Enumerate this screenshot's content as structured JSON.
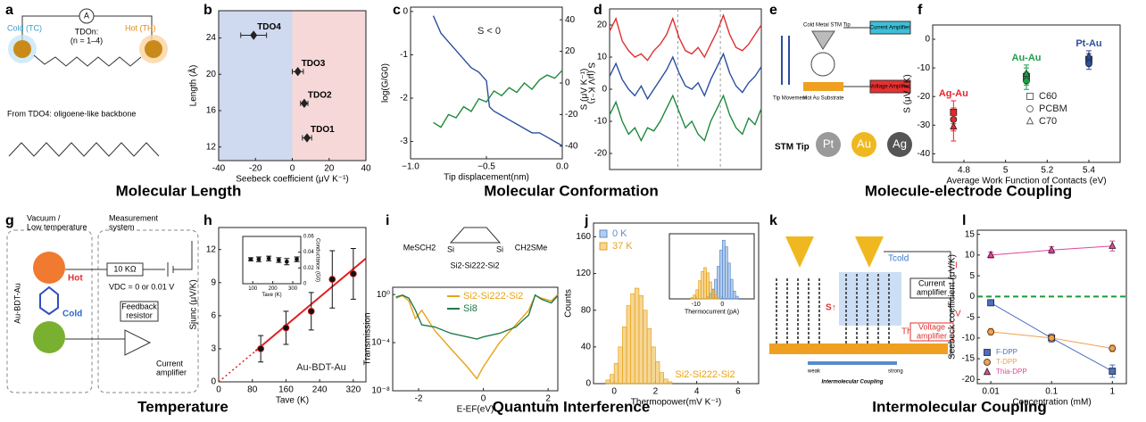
{
  "captions": [
    "Molecular Length",
    "Molecular Conformation",
    "Molecule-electrode Coupling",
    "Temperature",
    "Quantum Interference",
    "Intermolecular Coupling"
  ],
  "diagram_a": {
    "label": "a",
    "meter": "A",
    "cold": "Cold (TC)",
    "hot": "Hot (TH)",
    "molecule": "TDOn:",
    "n_range": "(n = 1–4)",
    "note": "From TDO4: oligoene-like backbone"
  },
  "diagram_e": {
    "label": "e",
    "tip": "Cold Metal STM Tip",
    "current_amp": "Current Amplifier",
    "movement": "Tip Movement",
    "substrate": "Hot Au Substrate",
    "voltage_amp": "Voltage Amplifier",
    "stm_tip": "STM Tip",
    "tips": [
      "Pt",
      "Au",
      "Ag"
    ]
  },
  "diagram_g": {
    "label": "g",
    "env": [
      "Vacuum /",
      "Low temperature"
    ],
    "system": [
      "Measurement",
      "system"
    ],
    "resistor": "10 KΩ",
    "voltage": "VDC = 0 or 0.01 V",
    "feedback": [
      "Feedback",
      "resistor"
    ],
    "amplifier": [
      "Current",
      "amplifier"
    ],
    "hot": "Hot",
    "cold": "Cold",
    "junction": "Au-BDT-Au"
  },
  "diagram_i": {
    "left": "MeSCH2",
    "si": [
      "Si",
      "Si"
    ],
    "right": "CH2SMe",
    "name": "Si2-Si222-Si2"
  },
  "diagram_k": {
    "label": "k",
    "t_cold": "Tcold",
    "t_hot": "Thot",
    "current": "I",
    "current_amp": [
      "Current",
      "amplifier"
    ],
    "voltage": "V",
    "voltage_amp": [
      "Voltage",
      "amplifier"
    ],
    "s": "S↑",
    "weak": "weak",
    "strong": "strong",
    "coupling": "Intermolecular Coupling"
  },
  "chart_data": [
    {
      "type": "scatter",
      "label": "b",
      "xlabel": "Seebeck coefficient (μV K⁻¹)",
      "ylabel": "Length (Å)",
      "xlim": [
        -40,
        40
      ],
      "xticks": [
        -40,
        -20,
        0,
        20,
        40
      ],
      "ylim": [
        10.5,
        27
      ],
      "yticks": [
        12,
        16,
        20,
        24
      ],
      "region_colors": [
        "#cfd9ef",
        "#f7d8d8"
      ],
      "series": [
        {
          "color": "#222",
          "marker": "diamond",
          "x": [
            8,
            6.5,
            3,
            -21
          ],
          "x_err": [
            2.5,
            2,
            3,
            7
          ],
          "values": [
            13,
            16.8,
            20.3,
            24.3
          ],
          "point_labels": [
            "TDO1",
            "TDO2",
            "TDO3",
            "TDO4"
          ]
        }
      ]
    },
    {
      "type": "line",
      "label": "c",
      "xlabel": "Tip displacement(nm)",
      "ylabel": "log(G/G0)",
      "y2label": "S (μV K⁻¹)",
      "xlim": [
        -1,
        0
      ],
      "xticks": [
        {
          "value": -1,
          "label": "−1.0"
        },
        {
          "value": -0.5,
          "label": "−0.5"
        },
        {
          "value": 0,
          "label": "0.0"
        }
      ],
      "ylim": [
        -3.4,
        0.1
      ],
      "yticks": [
        0,
        -1,
        -2,
        -3
      ],
      "y2lim": [
        -48,
        48
      ],
      "y2ticks": [
        -40,
        -20,
        0,
        20,
        40
      ],
      "annotations": [
        "S < 0"
      ],
      "series": [
        {
          "color": "#2a4f9e",
          "x": [
            -0.85,
            -0.8,
            -0.75,
            -0.7,
            -0.65,
            -0.6,
            -0.55,
            -0.5,
            -0.48,
            -0.45,
            -0.4,
            -0.35,
            -0.3,
            -0.25,
            -0.2,
            -0.15,
            -0.1,
            -0.05,
            0
          ],
          "values": [
            -0.1,
            -0.5,
            -0.7,
            -0.9,
            -1.1,
            -1.3,
            -1.4,
            -1.6,
            -2.2,
            -2.3,
            -2.4,
            -2.5,
            -2.6,
            -2.7,
            -2.8,
            -2.8,
            -2.9,
            -3.0,
            -3.1
          ]
        },
        {
          "color": "#1f8a3c",
          "axis": "y2",
          "x": [
            -0.85,
            -0.8,
            -0.75,
            -0.7,
            -0.65,
            -0.6,
            -0.55,
            -0.5,
            -0.45,
            -0.4,
            -0.35,
            -0.3,
            -0.25,
            -0.2,
            -0.15,
            -0.1,
            -0.05,
            0
          ],
          "values": [
            -25,
            -28,
            -20,
            -22,
            -15,
            -18,
            -10,
            -12,
            -5,
            -8,
            -3,
            -6,
            0,
            -4,
            2,
            5,
            3,
            8
          ]
        }
      ]
    },
    {
      "type": "line",
      "label": "d",
      "ylabel": "S (μV K⁻¹)",
      "ylim": [
        -25,
        25
      ],
      "yticks": [
        -20,
        -10,
        0,
        10,
        20
      ],
      "series": [
        {
          "color": "#e03030",
          "values": [
            18,
            22,
            15,
            12,
            10,
            11,
            9,
            12,
            14,
            17,
            22,
            16,
            12,
            11,
            13,
            10,
            14,
            18,
            23,
            17,
            13,
            12,
            14,
            17,
            20
          ]
        },
        {
          "color": "#2a4f9e",
          "values": [
            4,
            8,
            3,
            0,
            -2,
            1,
            -3,
            0,
            3,
            6,
            10,
            5,
            1,
            0,
            2,
            -2,
            3,
            7,
            11,
            5,
            1,
            -1,
            2,
            4,
            7
          ]
        },
        {
          "color": "#1f8a3c",
          "values": [
            -8,
            -4,
            -10,
            -14,
            -12,
            -16,
            -12,
            -13,
            -10,
            -6,
            -2,
            -7,
            -12,
            -10,
            -14,
            -16,
            -10,
            -6,
            -2,
            -8,
            -12,
            -14,
            -9,
            -11,
            -6
          ]
        }
      ]
    },
    {
      "type": "scatter",
      "label": "f",
      "xlabel": "Average Work Function of Contacts (eV)",
      "ylabel": "S (μV / K)",
      "xlim": [
        4.65,
        5.55
      ],
      "xticks": [
        4.8,
        5,
        5.2,
        5.4
      ],
      "ylim": [
        -43,
        5
      ],
      "yticks": [
        0,
        -10,
        -20,
        -30,
        -40
      ],
      "groups": [
        {
          "name": "Ag-Au",
          "color": "#e8262c"
        },
        {
          "name": "Au-Au",
          "color": "#1f9e4a"
        },
        {
          "name": "Pt-Au",
          "color": "#2c4fa0"
        }
      ],
      "series": [
        {
          "name": "C60",
          "marker": "square",
          "x": [
            4.75,
            5.1,
            5.4
          ],
          "values": [
            -25.5,
            -13,
            -7
          ],
          "errors": [
            4,
            3,
            2
          ]
        },
        {
          "name": "PCBM",
          "marker": "circle",
          "x": [
            4.75,
            5.1,
            5.4
          ],
          "values": [
            -28,
            -14.5,
            -8.5
          ],
          "errors": [
            4,
            3,
            2
          ]
        },
        {
          "name": "C70",
          "marker": "triangle",
          "x": [
            4.75,
            5.1,
            5.4
          ],
          "values": [
            -30.5,
            -12,
            -6
          ],
          "errors": [
            5,
            3,
            2
          ]
        }
      ]
    },
    {
      "type": "scatter",
      "label": "h",
      "xlabel": "Tave (K)",
      "ylabel": "Sjunc (μV/K)",
      "xlim": [
        0,
        350
      ],
      "xticks": [
        0,
        80,
        160,
        240,
        320
      ],
      "ylim": [
        0,
        14
      ],
      "yticks": [
        0,
        3,
        6,
        9,
        12
      ],
      "annotations": [
        "Au-BDT-Au"
      ],
      "fit": {
        "color": "#e02020",
        "slope": 0.032,
        "intercept": 0
      },
      "series": [
        {
          "color": "#111",
          "marker": "circle",
          "x": [
            100,
            160,
            220,
            270,
            320
          ],
          "values": [
            3,
            4.9,
            6.4,
            9.3,
            9.8
          ],
          "errors": [
            1.2,
            1.5,
            1.7,
            2.6,
            2.3
          ]
        }
      ]
    },
    {
      "type": "scatter",
      "xlabel": "Tave (K)",
      "y2label": "Conductance (G0)",
      "xlim": [
        50,
        340
      ],
      "xticks": [
        100,
        200,
        300
      ],
      "y2lim": [
        0,
        0.06
      ],
      "y2ticks": [
        0,
        0.02,
        0.04,
        0.06
      ],
      "series": [
        {
          "color": "#111",
          "marker": "circle",
          "axis": "y2",
          "x": [
            90,
            130,
            180,
            230,
            270,
            320
          ],
          "values": [
            0.031,
            0.031,
            0.032,
            0.03,
            0.028,
            0.031
          ],
          "errors": [
            0.002,
            0.003,
            0.003,
            0.003,
            0.004,
            0.003
          ]
        }
      ]
    },
    {
      "type": "line",
      "label": "i",
      "xlabel": "E-EF(eV)",
      "ylabel": "Transmission",
      "ylog": true,
      "xlim": [
        -2.8,
        2.3
      ],
      "xticks": [
        -2,
        0,
        2
      ],
      "ylim": [
        1e-08,
        4
      ],
      "yticks": [
        {
          "value": 1,
          "label": "10⁰"
        },
        {
          "value": 0.0001,
          "label": "10⁻⁴"
        },
        {
          "value": 1e-08,
          "label": "10⁻⁸"
        }
      ],
      "series": [
        {
          "name": "Si2-Si222-Si2",
          "color": "#e8a317",
          "x": [
            -2.7,
            -2.5,
            -2.3,
            -2.1,
            -1.9,
            -1.5,
            -1,
            -0.5,
            -0.2,
            0,
            0.5,
            1,
            1.4,
            1.6,
            1.8,
            2.1,
            2.3
          ],
          "values": [
            0.5,
            0.8,
            0.3,
            0.01,
            0.05,
            0.001,
            3e-05,
            1e-06,
            1e-07,
            1e-06,
            0.0001,
            0.003,
            0.05,
            0.8,
            0.5,
            0.3,
            1
          ]
        },
        {
          "name": "Si8",
          "color": "#1f7a4a",
          "x": [
            -2.7,
            -2.5,
            -2.3,
            -2.1,
            -1.9,
            -1.5,
            -1,
            -0.5,
            -0.2,
            0,
            0.5,
            1,
            1.4,
            1.6,
            1.8,
            2.1,
            2.3
          ],
          "values": [
            0.6,
            0.9,
            0.5,
            0.05,
            0.003,
            0.002,
            0.0006,
            0.0003,
            0.0002,
            0.0003,
            0.0006,
            0.002,
            0.02,
            0.9,
            0.4,
            0.2,
            0.8
          ]
        }
      ]
    },
    {
      "type": "histogram",
      "label": "j",
      "xlabel": "Thermopower(mV K⁻¹)",
      "ylabel": "Counts",
      "xlim": [
        -1,
        7
      ],
      "xticks": [
        0,
        2,
        4,
        6
      ],
      "ylim": [
        0,
        175
      ],
      "yticks": [
        0,
        40,
        80,
        120,
        160
      ],
      "annotations": [
        "Si2-Si222-Si2"
      ],
      "series": [
        {
          "name": "0 K",
          "color": "#5b8fd0"
        },
        {
          "name": "37 K",
          "color": "#e8a317",
          "bins": [
            -0.4,
            -0.2,
            0,
            0.2,
            0.4,
            0.6,
            0.8,
            1,
            1.2,
            1.4,
            1.6,
            1.8,
            2,
            2.2,
            2.4,
            2.6,
            2.8
          ],
          "counts": [
            4,
            10,
            22,
            40,
            62,
            85,
            98,
            104,
            96,
            80,
            60,
            40,
            24,
            12,
            5,
            2
          ]
        }
      ]
    },
    {
      "type": "histogram",
      "xlabel": "Thermocurrent (pA)",
      "xlim": [
        -20,
        12
      ],
      "xticks": [
        -10,
        0
      ],
      "ylim": [
        0,
        100
      ],
      "series": [
        {
          "color": "#5b8fd0",
          "bins": [
            -6,
            -5,
            -4,
            -3,
            -2,
            -1,
            0,
            1,
            2,
            3,
            4,
            5,
            6
          ],
          "counts": [
            3,
            8,
            15,
            30,
            50,
            75,
            90,
            80,
            55,
            30,
            12,
            4
          ]
        },
        {
          "color": "#e8a317",
          "bins": [
            -12,
            -11,
            -10,
            -9,
            -8,
            -7,
            -6,
            -5,
            -4,
            -3,
            -2,
            -1
          ],
          "counts": [
            2,
            6,
            14,
            28,
            42,
            48,
            40,
            26,
            14,
            6,
            2
          ]
        }
      ]
    },
    {
      "type": "line",
      "label": "l",
      "xlabel": "Concentration (mM)",
      "ylabel": "Seebeck coefficient (μV/K)",
      "xlog": true,
      "xlim": [
        0.006,
        1.7
      ],
      "xticks": [
        0.01,
        0.1,
        1
      ],
      "ylim": [
        -21,
        16
      ],
      "yticks": [
        -20,
        -15,
        -10,
        -5,
        0,
        5,
        10,
        15
      ],
      "zero_line": "#1a9a3a",
      "series": [
        {
          "name": "F-DPP",
          "color": "#4a6fc0",
          "marker": "square",
          "x": [
            0.01,
            0.1,
            1
          ],
          "values": [
            -1.5,
            -10,
            -18
          ],
          "errors": [
            0.5,
            1,
            1.5
          ]
        },
        {
          "name": "T-DPP",
          "color": "#f0a050",
          "marker": "circle",
          "x": [
            0.01,
            0.1,
            1
          ],
          "values": [
            -8.5,
            -10,
            -12.5
          ],
          "errors": [
            0.8,
            0.8,
            0.8
          ]
        },
        {
          "name": "Thia-DPP",
          "color": "#e0459a",
          "marker": "triangle",
          "x": [
            0.01,
            0.1,
            1
          ],
          "values": [
            10,
            11.2,
            12.2
          ],
          "errors": [
            0.7,
            0.8,
            1.2
          ]
        }
      ]
    }
  ]
}
